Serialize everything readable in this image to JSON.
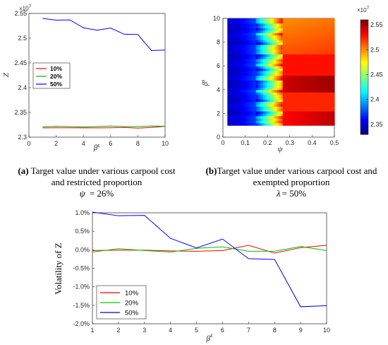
{
  "chart_data": [
    {
      "type": "line",
      "panel": "a",
      "multiplier_label": "×10",
      "multiplier_exp": "7",
      "xlabel": "β",
      "xlabel_sup": "s",
      "ylabel": "Z",
      "xlim": [
        0,
        10
      ],
      "ylim": [
        2.3,
        2.55
      ],
      "xticks": [
        "0",
        "2",
        "4",
        "6",
        "8",
        "10"
      ],
      "yticks": [
        "2.3",
        "2.35",
        "2.4",
        "2.45",
        "2.5",
        "2.55"
      ],
      "x": [
        1,
        2,
        3,
        4,
        5,
        6,
        7,
        8,
        9,
        10
      ],
      "series": [
        {
          "name": "10%",
          "color": "#ff0000",
          "values": [
            2.3188,
            2.319,
            2.3189,
            2.3188,
            2.3187,
            2.319,
            2.3196,
            2.3182,
            2.3196,
            2.322
          ]
        },
        {
          "name": "20%",
          "color": "#00b000",
          "values": [
            2.321,
            2.322,
            2.3215,
            2.3205,
            2.3215,
            2.3225,
            2.3215,
            2.3215,
            2.3225,
            2.322
          ]
        },
        {
          "name": "50%",
          "color": "#0000ff",
          "values": [
            2.54,
            2.5365,
            2.537,
            2.521,
            2.516,
            2.5205,
            2.508,
            2.5075,
            2.475,
            2.476
          ]
        }
      ],
      "caption_label": "(a)",
      "caption_line1": "Target value under various carpool cost",
      "caption_line2": "and restricted proportion",
      "caption_param": "ψ",
      "caption_value": "= 26%"
    },
    {
      "type": "heatmap",
      "panel": "b",
      "xlabel": "ψ",
      "ylabel": "β",
      "ylabel_sup": "s",
      "xlim": [
        0,
        0.5
      ],
      "ylim": [
        0,
        10
      ],
      "xticks": [
        "0",
        "0.1",
        "0.2",
        "0.3",
        "0.4",
        "0.5"
      ],
      "yticks": [
        "0",
        "2",
        "4",
        "6",
        "8",
        "10"
      ],
      "colorbar_multiplier_label": "×10",
      "colorbar_multiplier_exp": "7",
      "colorbar_range": [
        2.33,
        2.56
      ],
      "colorbar_ticks": [
        "2.35",
        "2.4",
        "2.45",
        "2.5",
        "2.55"
      ],
      "caption_label": "(b)",
      "caption_line1": "Target value under various carpool cost and",
      "caption_line2": "exempted proportion",
      "caption_param": "λ",
      "caption_value": "= 50%"
    },
    {
      "type": "line",
      "panel": "c",
      "xlabel": "β",
      "xlabel_sup": "s",
      "ylabel": "Volatility of Z",
      "xlim": [
        1,
        10
      ],
      "ylim": [
        -2.0,
        1.0
      ],
      "xticks": [
        "1",
        "2",
        "3",
        "4",
        "5",
        "6",
        "7",
        "8",
        "9",
        "10"
      ],
      "yticks": [
        "1.0%",
        "0.5%",
        "0.0%",
        "-0.5%",
        "-1.0%",
        "-1.5%",
        "-2.0%"
      ],
      "x": [
        1,
        2,
        3,
        4,
        5,
        6,
        7,
        8,
        9,
        10
      ],
      "series": [
        {
          "name": "10%",
          "color": "#ff0000",
          "values": [
            -0.02,
            -0.01,
            -0.01,
            -0.03,
            -0.04,
            -0.02,
            0.12,
            -0.09,
            0.06,
            0.12
          ]
        },
        {
          "name": "20%",
          "color": "#00c000",
          "values": [
            -0.06,
            0.03,
            -0.02,
            -0.06,
            0.04,
            0.08,
            -0.04,
            -0.04,
            0.09,
            -0.02
          ]
        },
        {
          "name": "50%",
          "color": "#0000ff",
          "values": [
            1.02,
            0.92,
            0.93,
            0.31,
            0.05,
            0.29,
            -0.24,
            -0.26,
            -1.54,
            -1.51
          ]
        }
      ]
    }
  ]
}
